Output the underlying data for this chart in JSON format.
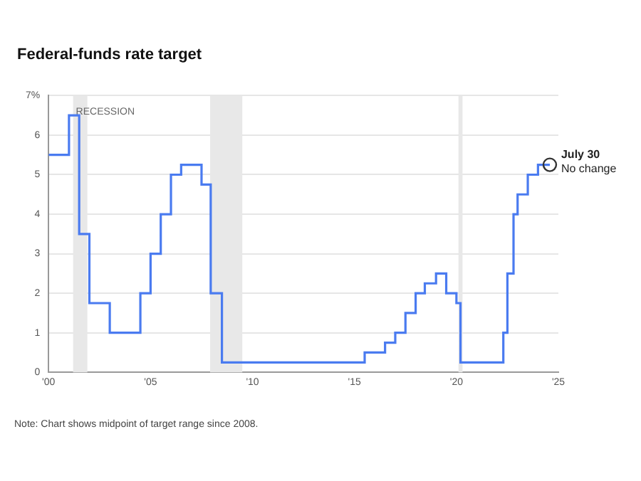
{
  "chart_data": {
    "type": "step",
    "title": "Federal-funds rate target",
    "x": [
      2000,
      2001,
      2001.5,
      2002,
      2003,
      2004.5,
      2005,
      2005.5,
      2006,
      2006.5,
      2007.5,
      2007.95,
      2008.5,
      2015.5,
      2016.5,
      2017,
      2017.5,
      2018,
      2018.45,
      2019,
      2019.5,
      2020,
      2020.2,
      2022.3,
      2022.5,
      2022.8,
      2023,
      2023.5,
      2024,
      2024.58
    ],
    "series": [
      {
        "color": "#4a7bf0",
        "values": [
          5.5,
          6.5,
          3.5,
          1.75,
          1,
          2,
          3,
          4,
          5,
          5.25,
          4.75,
          2,
          0.25,
          0.5,
          0.75,
          1,
          1.5,
          2,
          2.25,
          2.5,
          2,
          1.75,
          0.25,
          1,
          2.5,
          4,
          4.5,
          5,
          5.25,
          5.25
        ]
      }
    ],
    "xlim": [
      2000,
      2025
    ],
    "xticks": [
      {
        "value": 2000,
        "label": "'00"
      },
      {
        "value": 2005,
        "label": "'05"
      },
      {
        "value": 2010,
        "label": "'10"
      },
      {
        "value": 2015,
        "label": "'15"
      },
      {
        "value": 2020,
        "label": "'20"
      },
      {
        "value": 2025,
        "label": "'25"
      }
    ],
    "ylim": [
      0,
      7
    ],
    "yticks": [
      0,
      1,
      2,
      3,
      4,
      5,
      6,
      {
        "value": 7,
        "label": "7%"
      }
    ],
    "grid": "y",
    "bands": [
      {
        "axis": "x",
        "from": 2001.2,
        "to": 2001.9,
        "label": "RECESSION",
        "color": "#e8e8e8"
      },
      {
        "axis": "x",
        "from": 2007.92,
        "to": 2009.5,
        "color": "#e8e8e8"
      },
      {
        "axis": "x",
        "from": 2020.1,
        "to": 2020.3,
        "color": "#e8e8e8"
      }
    ],
    "annotations": [
      {
        "text": "July 30",
        "x": 2024.58,
        "y": 5.25
      },
      {
        "text": "No change",
        "x": 2024.58,
        "y": 5.25
      },
      "Note: Chart shows midpoint of target range since 2008."
    ]
  }
}
